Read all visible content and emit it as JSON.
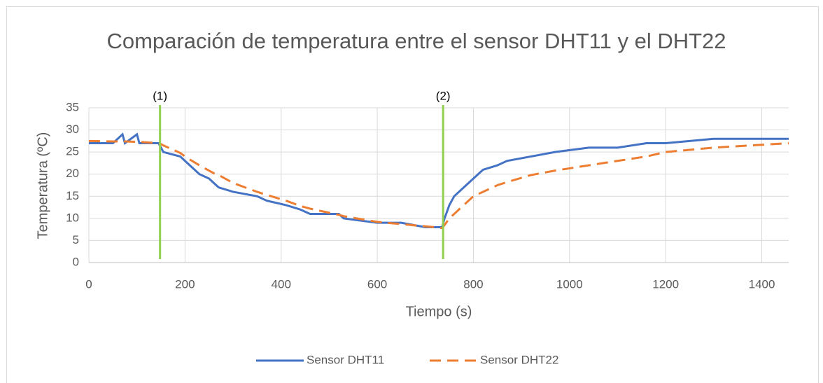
{
  "chart_data": {
    "type": "line",
    "title": "Comparación de temperatura entre el sensor DHT11 y el DHT22",
    "x_label": "Tiempo (s)",
    "y_label": "Temperatura (ºC)",
    "x": [
      0,
      50,
      70,
      75,
      100,
      105,
      145,
      150,
      155,
      190,
      200,
      210,
      230,
      250,
      260,
      270,
      300,
      350,
      370,
      410,
      440,
      460,
      520,
      530,
      600,
      650,
      700,
      720,
      735,
      740,
      750,
      760,
      780,
      800,
      820,
      850,
      870,
      920,
      970,
      1040,
      1100,
      1160,
      1200,
      1300,
      1456
    ],
    "series": [
      {
        "name": "Sensor DHT11",
        "color": "#4472c4",
        "dash": false,
        "values": [
          27,
          27,
          29,
          27,
          29,
          27,
          27,
          26,
          25,
          24,
          23,
          22,
          20,
          19,
          18,
          17,
          16,
          15,
          14,
          13,
          12,
          11,
          11,
          10,
          9,
          9,
          8,
          8,
          8,
          10,
          13,
          15,
          17,
          19,
          21,
          22,
          23,
          24,
          25,
          26,
          26,
          27,
          27,
          28,
          28
        ]
      },
      {
        "name": "Sensor DHT22",
        "color": "#ed7d31",
        "dash": true,
        "values": [
          27.5,
          27.4,
          27.4,
          27.4,
          27.3,
          27.3,
          27,
          26.8,
          26.5,
          24.8,
          24,
          23.3,
          22,
          20.8,
          20.2,
          19.8,
          18,
          16,
          15.3,
          14,
          12.8,
          12.2,
          10.8,
          10.5,
          9.2,
          8.7,
          8.2,
          8,
          7.8,
          8.5,
          10,
          11,
          13,
          15,
          16,
          17.5,
          18.2,
          19.8,
          20.8,
          22,
          23,
          24,
          25,
          26,
          27
        ]
      }
    ],
    "annotations": [
      {
        "label": "(1)",
        "x": 148,
        "color": "#92d050"
      },
      {
        "label": "(2)",
        "x": 737,
        "color": "#92d050"
      }
    ],
    "xlim": [
      0,
      1456
    ],
    "xticks": [
      0,
      200,
      400,
      600,
      800,
      1000,
      1200,
      1400
    ],
    "ylim": [
      0,
      35
    ],
    "yticks": [
      0,
      5,
      10,
      15,
      20,
      25,
      30,
      35
    ],
    "grid": true,
    "legend": "bottom"
  }
}
